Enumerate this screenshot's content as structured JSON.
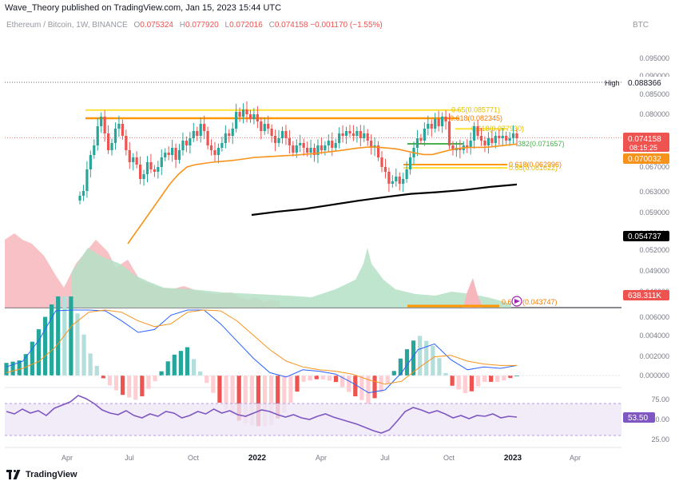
{
  "header": {
    "publisher": "Wave_Theory published on TradingView.com, Jan 15, 2023 15:44 UTC"
  },
  "symbol": {
    "name": "Ethereum / Bitcoin, 1W, BINANCE",
    "open_label": "O",
    "open": "0.075324",
    "high_label": "H",
    "high": "0.077920",
    "low_label": "L",
    "low": "0.072016",
    "close_label": "C",
    "close": "0.074158",
    "change": "−0.001170 (−1.55%)"
  },
  "currency": "BTC",
  "footer": {
    "brand": "TradingView"
  },
  "colors": {
    "up": "#26a69a",
    "down": "#ef5350",
    "ema_orange": "#f7931a",
    "sma_black": "#000000",
    "fib_yellow": "#ffe135",
    "fib_orange": "#ff9800",
    "fib_green": "#4caf50",
    "macd_blue": "#2962ff",
    "rsi_purple": "#7e57c2"
  },
  "chart_data": [
    {
      "type": "candlestick",
      "title": "Ethereum / Bitcoin, 1W, BINANCE",
      "x_tick_labels": [
        "Apr",
        "Jul",
        "Oct",
        "2022",
        "Apr",
        "Jul",
        "Oct",
        "2023",
        "Apr"
      ],
      "y_tick_labels": [
        "0.095000",
        "0.090000",
        "0.085000",
        "0.080000",
        "0.075000",
        "0.070000",
        "0.067000",
        "0.063000",
        "0.059000",
        "0.055000",
        "0.052000",
        "0.049000",
        "0.046000"
      ],
      "price_labels": {
        "high_label": "High",
        "high_value": "0.088366",
        "last_price": "0.074158",
        "countdown": "08:15:25",
        "ema_value": "0.070032",
        "sma_value": "0.054737",
        "volume_value": "638.311K"
      },
      "fib_levels": [
        {
          "label": "0.65(0.085771)",
          "value": 0.08577
        },
        {
          "label": "0.618(0.082345)",
          "value": 0.08235
        },
        {
          "label": "0.618(0.077930)",
          "value": 0.07793
        },
        {
          "label": "382(0.071657)",
          "value": 0.07166
        },
        {
          "label": "0.618(0.062996)",
          "value": 0.063
        },
        {
          "label": "0.65(0.061622)",
          "value": 0.06162
        },
        {
          "label": "0.6",
          "value": 0.0437
        },
        {
          "label": "(0.043747)",
          "value": 0.04375
        }
      ],
      "series": [
        {
          "name": "ETH/BTC",
          "values": [
            0.05,
            0.052,
            0.061,
            0.067,
            0.071,
            0.079,
            0.083,
            0.076,
            0.069,
            0.072,
            0.078,
            0.08,
            0.075,
            0.069,
            0.064,
            0.066,
            0.063,
            0.057,
            0.059,
            0.064,
            0.061,
            0.06,
            0.062,
            0.066,
            0.068,
            0.067,
            0.07,
            0.065,
            0.069,
            0.073,
            0.071,
            0.074,
            0.077,
            0.075,
            0.08,
            0.077,
            0.071,
            0.069,
            0.067,
            0.07,
            0.072,
            0.076,
            0.075,
            0.078,
            0.085,
            0.083,
            0.086,
            0.084,
            0.082,
            0.084,
            0.081,
            0.077,
            0.08,
            0.078,
            0.075,
            0.072,
            0.074,
            0.077,
            0.074,
            0.071,
            0.068,
            0.071,
            0.072,
            0.07,
            0.068,
            0.07,
            0.067,
            0.071,
            0.069,
            0.071,
            0.073,
            0.07,
            0.072,
            0.076,
            0.075,
            0.077,
            0.076,
            0.075,
            0.077,
            0.074,
            0.076,
            0.073,
            0.07,
            0.071,
            0.066,
            0.062,
            0.06,
            0.055,
            0.056,
            0.058,
            0.055,
            0.057,
            0.061,
            0.066,
            0.07,
            0.074,
            0.073,
            0.078,
            0.08,
            0.078,
            0.082,
            0.079,
            0.083,
            0.081,
            0.071,
            0.069,
            0.07,
            0.069,
            0.071,
            0.07,
            0.073,
            0.079,
            0.075,
            0.073,
            0.071,
            0.074,
            0.072,
            0.075,
            0.074,
            0.075,
            0.073,
            0.074,
            0.076,
            0.074
          ]
        },
        {
          "name": "EMA",
          "values": [
            0.03,
            0.035,
            0.04,
            0.045,
            0.05,
            0.055,
            0.059,
            0.062,
            0.063,
            0.0635,
            0.064,
            0.0643,
            0.0646,
            0.065,
            0.0655,
            0.066,
            0.0662,
            0.0664,
            0.0666,
            0.0668,
            0.067,
            0.0673,
            0.0676,
            0.068,
            0.0684,
            0.0688,
            0.0693,
            0.0698,
            0.0702,
            0.0704,
            0.0701,
            0.0698,
            0.0694,
            0.0686,
            0.0678,
            0.0672,
            0.0672,
            0.0681,
            0.069,
            0.0697,
            0.0701,
            0.0702,
            0.0702,
            0.0704,
            0.0708,
            0.0712,
            0.0716
          ]
        },
        {
          "name": "SMA",
          "values": [
            0.042,
            0.0434,
            0.0445,
            0.0462,
            0.0479,
            0.0494,
            0.0508,
            0.0515,
            0.0524,
            0.0537,
            0.0547
          ]
        }
      ]
    },
    {
      "type": "bar",
      "title": "MACD",
      "y_tick_labels": [
        "0.006000",
        "0.004000",
        "0.002000",
        "0.000000"
      ],
      "series": [
        {
          "name": "MACD",
          "values": [
            0.0006,
            0.001,
            0.0025,
            0.0045,
            0.006,
            0.0052,
            0.0045,
            0.0038,
            0.003,
            0.0032,
            0.0042,
            0.0053,
            0.0047,
            0.0036,
            0.0024,
            0.0012,
            0.0002,
            -0.0001,
            0.0004,
            0.0003,
            0.0001,
            -0.0005,
            -0.0012,
            -0.001,
            0.0002,
            0.0018,
            0.0022,
            0.0011,
            0.0004,
            0.0006,
            0.0005,
            0.0007
          ]
        },
        {
          "name": "Signal",
          "values": [
            0.0002,
            0.0005,
            0.001,
            0.002,
            0.0035,
            0.0044,
            0.0047,
            0.0044,
            0.0038,
            0.0034,
            0.0036,
            0.0044,
            0.0048,
            0.0045,
            0.0038,
            0.0028,
            0.0018,
            0.001,
            0.0006,
            0.0004,
            0.0003,
            0.0001,
            -0.0003,
            -0.0006,
            -0.0004,
            0.0005,
            0.0013,
            0.0014,
            0.001,
            0.0008,
            0.0007,
            0.0007
          ]
        }
      ]
    },
    {
      "type": "line",
      "title": "RSI",
      "y_tick_labels": [
        "75.00",
        "50.00",
        "25.00"
      ],
      "last_value": "53.50",
      "series": [
        {
          "name": "RSI",
          "values": [
            60,
            57,
            63,
            58,
            61,
            55,
            64,
            68,
            72,
            80,
            76,
            70,
            62,
            58,
            56,
            61,
            55,
            52,
            57,
            54,
            60,
            58,
            52,
            55,
            60,
            57,
            63,
            58,
            61,
            56,
            54,
            58,
            62,
            60,
            56,
            53,
            56,
            52,
            50,
            54,
            57,
            53,
            50,
            47,
            44,
            40,
            36,
            33,
            37,
            48,
            60,
            65,
            62,
            58,
            61,
            57,
            52,
            55,
            51,
            55,
            54,
            57,
            52,
            54,
            53
          ]
        }
      ]
    }
  ]
}
